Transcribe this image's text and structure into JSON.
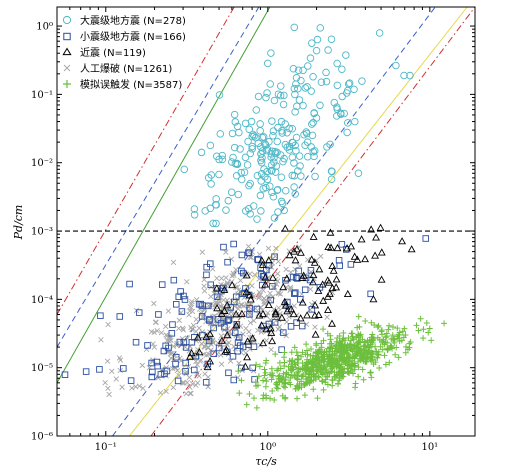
{
  "chart_data": {
    "type": "scatter",
    "xlabel": "τc/s",
    "ylabel": "Pd/cm",
    "xscale": "log",
    "yscale": "log",
    "xlim": [
      0.05,
      19
    ],
    "ylim": [
      1e-06,
      1.9
    ],
    "x_ticks": [
      {
        "value": 0.1,
        "label": "10⁻¹"
      },
      {
        "value": 1,
        "label": "10⁰"
      },
      {
        "value": 10,
        "label": "10¹"
      }
    ],
    "y_ticks": [
      {
        "value": 1,
        "label": "10⁰"
      },
      {
        "value": 0.1,
        "label": "10⁻¹"
      },
      {
        "value": 0.01,
        "label": "10⁻²"
      },
      {
        "value": 0.001,
        "label": "10⁻³"
      },
      {
        "value": 0.0001,
        "label": "10⁻⁴"
      },
      {
        "value": 1e-05,
        "label": "10⁻⁵"
      },
      {
        "value": 1e-06,
        "label": "10⁻⁶"
      }
    ],
    "legend_position": "top-left",
    "threshold": {
      "y": 0.001,
      "style": "black dashed horizontal"
    },
    "reference_lines": [
      {
        "color": "#40a030",
        "style": "solid",
        "points": [
          [
            0.05,
            6e-06
          ],
          [
            1.03,
            1.9
          ]
        ]
      },
      {
        "color": "#e6d84a",
        "style": "solid",
        "points": [
          [
            0.14,
            1e-06
          ],
          [
            17,
            1.9
          ]
        ]
      },
      {
        "color": "#3a5fc8",
        "style": "dashed",
        "points": [
          [
            0.05,
            2e-05
          ],
          [
            0.88,
            1.9
          ]
        ]
      },
      {
        "color": "#3a5fc8",
        "style": "dashed",
        "points": [
          [
            0.11,
            1e-06
          ],
          [
            10.8,
            1.9
          ]
        ]
      },
      {
        "color": "#d03030",
        "style": "dash-dot",
        "points": [
          [
            0.05,
            6e-05
          ],
          [
            0.62,
            1.9
          ]
        ]
      },
      {
        "color": "#d03030",
        "style": "dash-dot",
        "points": [
          [
            0.19,
            1e-06
          ],
          [
            19,
            1.9
          ]
        ]
      }
    ],
    "series": [
      {
        "name": "大震级地方震 (N=278)",
        "marker": "circle",
        "color": "#4fb8c8",
        "count": 278,
        "center": [
          1.15,
          0.018
        ],
        "spread": [
          0.28,
          0.55
        ],
        "tilt": 1.7,
        "clip_y": [
          0.0012,
          1.2
        ],
        "sample_size": 240
      },
      {
        "name": "小震级地方震 (N=166)",
        "marker": "square",
        "color": "#2a4ea0",
        "count": 166,
        "center": [
          0.55,
          6e-05
        ],
        "spread": [
          0.42,
          0.55
        ],
        "tilt": 1.3,
        "clip_y": [
          5e-06,
          0.0009
        ],
        "sample_size": 150
      },
      {
        "name": "近震 (N=119)",
        "marker": "triangle",
        "color": "#000000",
        "count": 119,
        "center": [
          1.4,
          0.00012
        ],
        "spread": [
          0.32,
          0.45
        ],
        "tilt": 1.6,
        "clip_y": [
          1e-05,
          0.0012
        ],
        "sample_size": 110
      },
      {
        "name": "人工爆破 (N=1261)",
        "marker": "x",
        "color": "#a8a8a8",
        "count": 1261,
        "center": [
          0.55,
          5e-05
        ],
        "spread": [
          0.3,
          0.45
        ],
        "tilt": 1.3,
        "clip_y": [
          4e-06,
          0.0006
        ],
        "sample_size": 420
      },
      {
        "name": "模拟误触发 (N=3587)",
        "marker": "plus",
        "color": "#6cbf3c",
        "count": 3587,
        "center": [
          2.6,
          1.3e-05
        ],
        "spread": [
          0.22,
          0.16
        ],
        "tilt": 0.7,
        "clip_y": [
          2.5e-06,
          6e-05
        ],
        "sample_size": 700
      }
    ]
  },
  "legend": {
    "item_0": "大震级地方震 (N=278)",
    "item_1": "小震级地方震 (N=166)",
    "item_2": "近震 (N=119)",
    "item_3": "人工爆破 (N=1261)",
    "item_4": "模拟误触发 (N=3587)"
  }
}
